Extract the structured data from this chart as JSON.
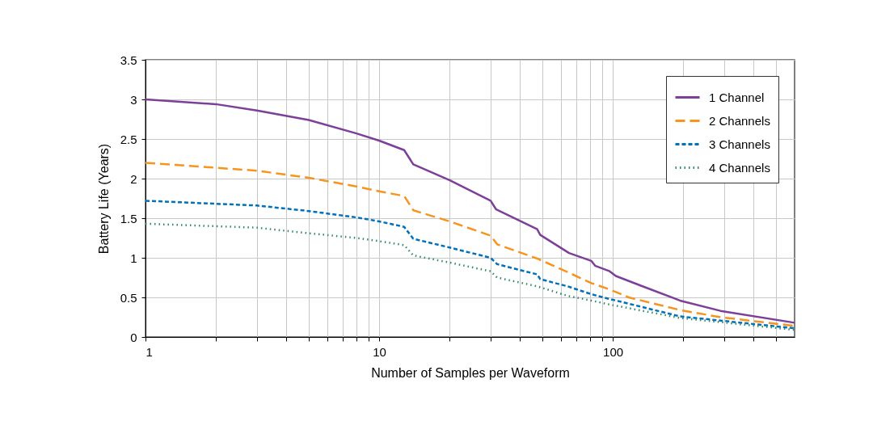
{
  "chart_data": {
    "type": "line",
    "xlabel": "Number of Samples per Waveform",
    "ylabel": "Battery Life (Years)",
    "log": "x",
    "xlim": [
      1,
      600
    ],
    "ylim": [
      0,
      3.5
    ],
    "xticks": [
      1,
      {
        "value": 2,
        "label": null
      },
      {
        "value": 3,
        "label": null
      },
      {
        "value": 4,
        "label": null
      },
      {
        "value": 5,
        "label": null
      },
      {
        "value": 6,
        "label": null
      },
      {
        "value": 7,
        "label": null
      },
      {
        "value": 8,
        "label": null
      },
      {
        "value": 9,
        "label": null
      },
      10,
      {
        "value": 20,
        "label": null
      },
      {
        "value": 30,
        "label": null
      },
      {
        "value": 40,
        "label": null
      },
      {
        "value": 50,
        "label": null
      },
      {
        "value": 60,
        "label": null
      },
      {
        "value": 70,
        "label": null
      },
      {
        "value": 80,
        "label": null
      },
      {
        "value": 90,
        "label": null
      },
      100,
      {
        "value": 200,
        "label": null
      },
      {
        "value": 300,
        "label": null
      },
      {
        "value": 400,
        "label": null
      },
      {
        "value": 500,
        "label": null
      }
    ],
    "yticks": [
      0,
      0.5,
      1,
      1.5,
      2,
      2.5,
      3,
      3.5
    ],
    "grid": true,
    "legend": "top right",
    "marker": "none",
    "series": [
      {
        "name": "1 Channel",
        "color": "#7d3f98",
        "line_style": "solid",
        "x": [
          1,
          2,
          3,
          5,
          8,
          10,
          12.8,
          14,
          20,
          30,
          31.7,
          47.5,
          48.9,
          65,
          81,
          84,
          97,
          103,
          134,
          194,
          289,
          600
        ],
        "values": [
          3.0,
          2.94,
          2.86,
          2.74,
          2.57,
          2.48,
          2.36,
          2.18,
          1.98,
          1.72,
          1.61,
          1.36,
          1.29,
          1.06,
          0.96,
          0.9,
          0.83,
          0.77,
          0.64,
          0.46,
          0.33,
          0.18
        ]
      },
      {
        "name": "2 Channels",
        "color": "#f7941d",
        "line_style": "dashed",
        "x": [
          1,
          3,
          5,
          8,
          10,
          12.8,
          14,
          20,
          30,
          32,
          47.5,
          64,
          81,
          97,
          117,
          194,
          289,
          600
        ],
        "values": [
          2.2,
          2.1,
          2.01,
          1.9,
          1.84,
          1.78,
          1.6,
          1.46,
          1.28,
          1.17,
          0.99,
          0.82,
          0.68,
          0.6,
          0.5,
          0.34,
          0.25,
          0.14
        ]
      },
      {
        "name": "3 Channels",
        "color": "#0071bc",
        "line_style": "dashed",
        "x": [
          1,
          3,
          5,
          8,
          10,
          12.8,
          14,
          20,
          30,
          32,
          47.5,
          48.9,
          64,
          81,
          97,
          194,
          600
        ],
        "values": [
          1.72,
          1.66,
          1.59,
          1.51,
          1.46,
          1.39,
          1.24,
          1.13,
          1.0,
          0.92,
          0.79,
          0.73,
          0.64,
          0.54,
          0.48,
          0.26,
          0.11
        ]
      },
      {
        "name": "4 Channels",
        "color": "#2e8b6a",
        "line_style": "dotted",
        "x": [
          1,
          3,
          5,
          8,
          10,
          12.8,
          14,
          20,
          30,
          32,
          47.5,
          64,
          81,
          97,
          194,
          600
        ],
        "values": [
          1.43,
          1.38,
          1.31,
          1.25,
          1.21,
          1.16,
          1.03,
          0.94,
          0.83,
          0.75,
          0.64,
          0.52,
          0.46,
          0.41,
          0.24,
          0.09
        ]
      }
    ]
  }
}
